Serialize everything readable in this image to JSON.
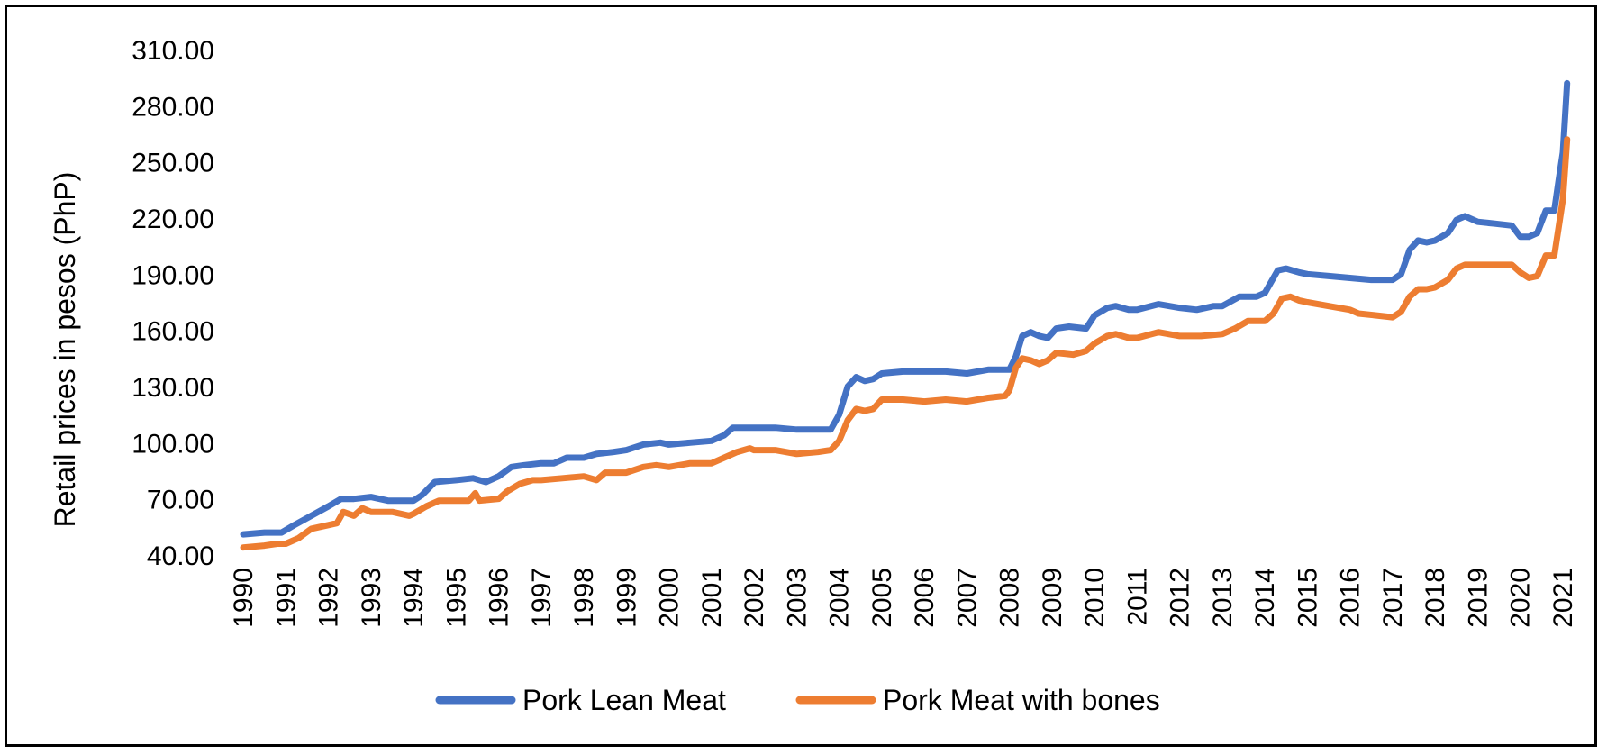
{
  "chart_data": {
    "type": "line",
    "title": "",
    "xlabel": "",
    "ylabel": "Retail prices in pesos (PhP)",
    "ylim": [
      40,
      310
    ],
    "y_ticks": [
      "40.00",
      "70.00",
      "100.00",
      "130.00",
      "160.00",
      "190.00",
      "220.00",
      "250.00",
      "280.00",
      "310.00"
    ],
    "y_tick_values": [
      40,
      70,
      100,
      130,
      160,
      190,
      220,
      250,
      280,
      310
    ],
    "x_ticks": [
      "1990",
      "1991",
      "1992",
      "1993",
      "1994",
      "1995",
      "1996",
      "1997",
      "1998",
      "1999",
      "2000",
      "2001",
      "2002",
      "2003",
      "2004",
      "2005",
      "2006",
      "2007",
      "2008",
      "2009",
      "2010",
      "2011",
      "2012",
      "2013",
      "2014",
      "2015",
      "2016",
      "2017",
      "2018",
      "2019",
      "2020",
      "2021"
    ],
    "xlim": [
      1990,
      2021
    ],
    "grid": false,
    "legend_position": "bottom",
    "series": [
      {
        "name": "Pork Lean Meat",
        "color": "#4472C4",
        "points": [
          [
            1990.0,
            51
          ],
          [
            1990.5,
            52
          ],
          [
            1990.9,
            52
          ],
          [
            1991.2,
            56
          ],
          [
            1991.6,
            61
          ],
          [
            1992.0,
            66
          ],
          [
            1992.3,
            70
          ],
          [
            1992.6,
            70
          ],
          [
            1993.0,
            71
          ],
          [
            1993.4,
            69
          ],
          [
            1993.7,
            69
          ],
          [
            1994.0,
            69
          ],
          [
            1994.2,
            72
          ],
          [
            1994.5,
            79
          ],
          [
            1995.0,
            80
          ],
          [
            1995.4,
            81
          ],
          [
            1995.7,
            79
          ],
          [
            1996.0,
            82
          ],
          [
            1996.3,
            87
          ],
          [
            1996.6,
            88
          ],
          [
            1997.0,
            89
          ],
          [
            1997.3,
            89
          ],
          [
            1997.6,
            92
          ],
          [
            1998.0,
            92
          ],
          [
            1998.3,
            94
          ],
          [
            1998.7,
            95
          ],
          [
            1999.0,
            96
          ],
          [
            1999.4,
            99
          ],
          [
            1999.8,
            100
          ],
          [
            2000.0,
            99
          ],
          [
            2000.5,
            100
          ],
          [
            2001.0,
            101
          ],
          [
            2001.3,
            104
          ],
          [
            2001.5,
            108
          ],
          [
            2002.0,
            108
          ],
          [
            2002.5,
            108
          ],
          [
            2003.0,
            107
          ],
          [
            2003.4,
            107
          ],
          [
            2003.8,
            107
          ],
          [
            2004.0,
            115
          ],
          [
            2004.2,
            130
          ],
          [
            2004.4,
            135
          ],
          [
            2004.6,
            133
          ],
          [
            2004.8,
            134
          ],
          [
            2005.0,
            137
          ],
          [
            2005.5,
            138
          ],
          [
            2006.0,
            138
          ],
          [
            2006.5,
            138
          ],
          [
            2007.0,
            137
          ],
          [
            2007.5,
            139
          ],
          [
            2008.0,
            139
          ],
          [
            2008.15,
            146
          ],
          [
            2008.3,
            157
          ],
          [
            2008.5,
            159
          ],
          [
            2008.7,
            157
          ],
          [
            2008.9,
            156
          ],
          [
            2009.1,
            161
          ],
          [
            2009.4,
            162
          ],
          [
            2009.8,
            161
          ],
          [
            2010.0,
            168
          ],
          [
            2010.3,
            172
          ],
          [
            2010.5,
            173
          ],
          [
            2010.8,
            171
          ],
          [
            2011.0,
            171
          ],
          [
            2011.5,
            174
          ],
          [
            2012.0,
            172
          ],
          [
            2012.4,
            171
          ],
          [
            2012.8,
            173
          ],
          [
            2013.0,
            173
          ],
          [
            2013.4,
            178
          ],
          [
            2013.8,
            178
          ],
          [
            2014.0,
            180
          ],
          [
            2014.3,
            192
          ],
          [
            2014.5,
            193
          ],
          [
            2014.8,
            191
          ],
          [
            2015.0,
            190
          ],
          [
            2015.5,
            189
          ],
          [
            2016.0,
            188
          ],
          [
            2016.5,
            187
          ],
          [
            2017.0,
            187
          ],
          [
            2017.2,
            190
          ],
          [
            2017.4,
            203
          ],
          [
            2017.6,
            208
          ],
          [
            2017.8,
            207
          ],
          [
            2018.0,
            208
          ],
          [
            2018.3,
            212
          ],
          [
            2018.5,
            219
          ],
          [
            2018.7,
            221
          ],
          [
            2019.0,
            218
          ],
          [
            2019.4,
            217
          ],
          [
            2019.8,
            216
          ],
          [
            2020.0,
            210
          ],
          [
            2020.2,
            210
          ],
          [
            2020.4,
            212
          ],
          [
            2020.6,
            224
          ],
          [
            2020.8,
            224
          ],
          [
            2020.9,
            240
          ],
          [
            2021.0,
            255
          ],
          [
            2021.1,
            292
          ]
        ]
      },
      {
        "name": "Pork Meat with bones",
        "color": "#ED7D31",
        "points": [
          [
            1990.0,
            44
          ],
          [
            1990.5,
            45
          ],
          [
            1990.8,
            46
          ],
          [
            1991.0,
            46
          ],
          [
            1991.3,
            49
          ],
          [
            1991.6,
            54
          ],
          [
            1992.0,
            56
          ],
          [
            1992.2,
            57
          ],
          [
            1992.35,
            63
          ],
          [
            1992.6,
            61
          ],
          [
            1992.8,
            65
          ],
          [
            1993.0,
            63
          ],
          [
            1993.5,
            63
          ],
          [
            1993.9,
            61
          ],
          [
            1994.0,
            62
          ],
          [
            1994.3,
            66
          ],
          [
            1994.6,
            69
          ],
          [
            1995.0,
            69
          ],
          [
            1995.3,
            69
          ],
          [
            1995.45,
            73
          ],
          [
            1995.55,
            69
          ],
          [
            1996.0,
            70
          ],
          [
            1996.2,
            74
          ],
          [
            1996.5,
            78
          ],
          [
            1996.8,
            80
          ],
          [
            1997.0,
            80
          ],
          [
            1997.5,
            81
          ],
          [
            1998.0,
            82
          ],
          [
            1998.3,
            80
          ],
          [
            1998.5,
            84
          ],
          [
            1999.0,
            84
          ],
          [
            1999.4,
            87
          ],
          [
            1999.7,
            88
          ],
          [
            2000.0,
            87
          ],
          [
            2000.5,
            89
          ],
          [
            2001.0,
            89
          ],
          [
            2001.3,
            92
          ],
          [
            2001.6,
            95
          ],
          [
            2001.9,
            97
          ],
          [
            2002.0,
            96
          ],
          [
            2002.5,
            96
          ],
          [
            2003.0,
            94
          ],
          [
            2003.5,
            95
          ],
          [
            2003.8,
            96
          ],
          [
            2004.0,
            101
          ],
          [
            2004.2,
            112
          ],
          [
            2004.4,
            118
          ],
          [
            2004.6,
            117
          ],
          [
            2004.8,
            118
          ],
          [
            2005.0,
            123
          ],
          [
            2005.5,
            123
          ],
          [
            2006.0,
            122
          ],
          [
            2006.5,
            123
          ],
          [
            2007.0,
            122
          ],
          [
            2007.5,
            124
          ],
          [
            2007.9,
            125
          ],
          [
            2008.0,
            128
          ],
          [
            2008.15,
            140
          ],
          [
            2008.3,
            145
          ],
          [
            2008.5,
            144
          ],
          [
            2008.7,
            142
          ],
          [
            2008.9,
            144
          ],
          [
            2009.1,
            148
          ],
          [
            2009.5,
            147
          ],
          [
            2009.8,
            149
          ],
          [
            2010.0,
            153
          ],
          [
            2010.3,
            157
          ],
          [
            2010.5,
            158
          ],
          [
            2010.8,
            156
          ],
          [
            2011.0,
            156
          ],
          [
            2011.5,
            159
          ],
          [
            2012.0,
            157
          ],
          [
            2012.5,
            157
          ],
          [
            2013.0,
            158
          ],
          [
            2013.3,
            161
          ],
          [
            2013.6,
            165
          ],
          [
            2014.0,
            165
          ],
          [
            2014.2,
            169
          ],
          [
            2014.4,
            177
          ],
          [
            2014.6,
            178
          ],
          [
            2014.8,
            176
          ],
          [
            2015.0,
            175
          ],
          [
            2015.5,
            173
          ],
          [
            2016.0,
            171
          ],
          [
            2016.2,
            169
          ],
          [
            2016.6,
            168
          ],
          [
            2017.0,
            167
          ],
          [
            2017.2,
            170
          ],
          [
            2017.4,
            178
          ],
          [
            2017.6,
            182
          ],
          [
            2017.8,
            182
          ],
          [
            2018.0,
            183
          ],
          [
            2018.3,
            187
          ],
          [
            2018.5,
            193
          ],
          [
            2018.7,
            195
          ],
          [
            2019.0,
            195
          ],
          [
            2019.5,
            195
          ],
          [
            2019.8,
            195
          ],
          [
            2020.0,
            191
          ],
          [
            2020.2,
            188
          ],
          [
            2020.4,
            189
          ],
          [
            2020.6,
            200
          ],
          [
            2020.8,
            200
          ],
          [
            2020.9,
            215
          ],
          [
            2021.0,
            230
          ],
          [
            2021.1,
            262
          ]
        ]
      }
    ]
  }
}
